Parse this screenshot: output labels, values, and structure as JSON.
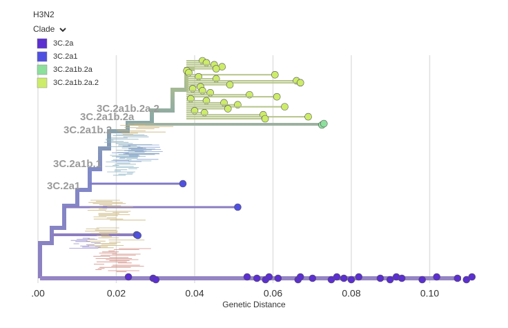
{
  "header": {
    "title": "H3N2",
    "color_by": "Clade"
  },
  "chart_data": {
    "type": "tree",
    "x_label": "Genetic Distance",
    "xlim": [
      0,
      0.112
    ],
    "xticks": [
      {
        "value": 0,
        "label": ".00"
      },
      0.02,
      0.04,
      0.06,
      0.08,
      {
        "value": 0.1,
        "label": "0.10"
      }
    ],
    "grid": true,
    "clade_labels": [
      "3C.2a1b.2a.2",
      "3C.2a1b.2a",
      "3C.2a1b.2",
      "3C.2a1b.1",
      "3C.2a1"
    ],
    "series": [
      {
        "name": "3C.2a",
        "color": "#5b2fd0",
        "values": [
          0.0231,
          0.0294,
          0.0301,
          0.0534,
          0.0559,
          0.0581,
          0.059,
          0.0613,
          0.0664,
          0.067,
          0.0701,
          0.0749,
          0.0763,
          0.0781,
          0.08,
          0.0819,
          0.0874,
          0.0899,
          0.0915,
          0.0929,
          0.0981,
          0.1018,
          0.1071,
          0.1094,
          0.1108
        ]
      },
      {
        "name": "3C.2a1",
        "color": "#5050e0",
        "values": [
          0.037,
          0.051,
          0.0252,
          0.0255
        ]
      },
      {
        "name": "3C.2a1b.2a",
        "color": "#8ddf9c",
        "values": [
          0.0725,
          0.073
        ]
      },
      {
        "name": "3C.2a1b.2a.2",
        "color": "#cdec6a",
        "values": [
          0.042,
          0.043,
          0.045,
          0.047,
          0.0455,
          0.038,
          0.0385,
          0.0605,
          0.041,
          0.0455,
          0.066,
          0.067,
          0.049,
          0.0415,
          0.0395,
          0.042,
          0.044,
          0.054,
          0.061,
          0.039,
          0.043,
          0.0475,
          0.051,
          0.063,
          0.0485,
          0.04,
          0.0425,
          0.0575,
          0.069,
          0.058
        ]
      }
    ]
  }
}
